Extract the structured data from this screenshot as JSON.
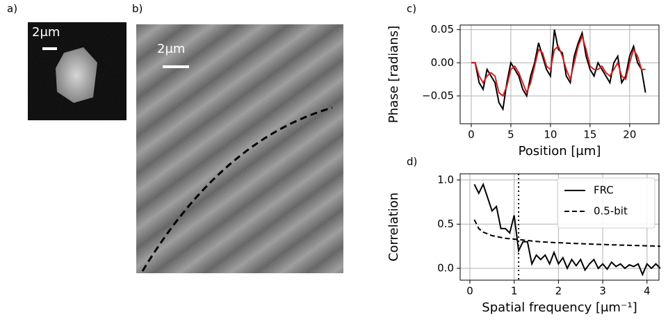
{
  "images": [
    {
      "label": "a)",
      "scale_bar": "2μm"
    },
    {
      "label": "b)",
      "scale_bar": "2μm"
    }
  ],
  "chart_data": [
    {
      "type": "line",
      "label": "c)",
      "ylabel": "Phase [radians]",
      "xlabel": "Position [μm]",
      "xlim": [
        -1.4,
        23.7
      ],
      "ylim": [
        -0.092,
        0.057
      ],
      "grid": true,
      "xticks": [
        0,
        5,
        10,
        15,
        20
      ],
      "yticks": [
        {
          "value": -0.05,
          "label": "−0.05"
        },
        {
          "value": 0,
          "label": "0.00"
        },
        0.05
      ],
      "x": [
        0,
        0.5,
        1,
        1.5,
        2,
        2.5,
        3,
        3.5,
        4,
        4.5,
        5,
        5.5,
        6,
        6.5,
        7,
        7.5,
        8,
        8.5,
        9,
        9.5,
        10,
        10.5,
        11,
        11.5,
        12,
        12.5,
        13,
        13.5,
        14,
        14.5,
        15,
        15.5,
        16,
        16.5,
        17,
        17.5,
        18,
        18.5,
        19,
        19.5,
        20,
        20.5,
        21,
        21.5,
        22
      ],
      "series": [
        {
          "color": "#000000",
          "style": "solid",
          "values": [
            0,
            0,
            -0.03,
            -0.04,
            -0.01,
            -0.02,
            -0.03,
            -0.06,
            -0.07,
            -0.03,
            0.0,
            -0.01,
            -0.02,
            -0.04,
            -0.05,
            -0.02,
            0.0,
            0.03,
            0.01,
            -0.01,
            -0.02,
            0.05,
            0.02,
            0.015,
            -0.02,
            -0.03,
            0.01,
            0.03,
            0.045,
            0.01,
            -0.01,
            -0.02,
            0.0,
            -0.01,
            -0.02,
            -0.03,
            0.0,
            0.01,
            -0.03,
            -0.02,
            0.01,
            0.025,
            0.0,
            -0.01,
            -0.045
          ]
        },
        {
          "color": "#d62020",
          "style": "solid",
          "values": [
            0,
            0,
            -0.02,
            -0.03,
            -0.02,
            -0.015,
            -0.02,
            -0.045,
            -0.05,
            -0.035,
            -0.01,
            -0.005,
            -0.015,
            -0.03,
            -0.045,
            -0.03,
            -0.005,
            0.02,
            0.015,
            -0.005,
            -0.01,
            0.02,
            0.025,
            0.01,
            -0.01,
            -0.025,
            0.0,
            0.025,
            0.04,
            0.02,
            -0.005,
            -0.01,
            -0.01,
            -0.005,
            -0.015,
            -0.02,
            -0.01,
            0.0,
            -0.02,
            -0.025,
            0.0,
            0.02,
            0.01,
            -0.01,
            -0.01
          ]
        }
      ]
    },
    {
      "type": "line",
      "label": "d)",
      "ylabel": "Correlation",
      "xlabel": "Spatial frequency [μm⁻¹]",
      "xlim": [
        -0.22,
        4.27
      ],
      "ylim": [
        -0.134,
        1.07
      ],
      "grid": true,
      "legend": "upper right",
      "xticks": [
        0,
        1,
        2,
        3,
        4
      ],
      "yticks": [
        {
          "value": 0,
          "label": "0.0"
        },
        0.5,
        {
          "value": 1,
          "label": "1.0"
        }
      ],
      "vline": 1.1,
      "x": [
        0.1,
        0.2,
        0.3,
        0.4,
        0.5,
        0.6,
        0.7,
        0.8,
        0.9,
        1.0,
        1.1,
        1.2,
        1.3,
        1.4,
        1.5,
        1.6,
        1.7,
        1.8,
        1.9,
        2.0,
        2.1,
        2.2,
        2.3,
        2.4,
        2.5,
        2.6,
        2.7,
        2.8,
        2.9,
        3.0,
        3.1,
        3.2,
        3.3,
        3.4,
        3.5,
        3.6,
        3.7,
        3.8,
        3.9,
        4.0,
        4.1,
        4.2,
        4.3
      ],
      "series": [
        {
          "name": "FRC",
          "color": "#000000",
          "style": "solid",
          "values": [
            0.95,
            0.85,
            0.95,
            0.8,
            0.65,
            0.7,
            0.45,
            0.45,
            0.4,
            0.6,
            0.2,
            0.3,
            0.3,
            0.05,
            0.15,
            0.1,
            0.15,
            0.05,
            0.18,
            0.05,
            0.12,
            0.0,
            0.1,
            0.03,
            0.1,
            -0.02,
            0.05,
            0.1,
            0.0,
            0.05,
            -0.01,
            0.07,
            0.02,
            0.05,
            0.0,
            0.04,
            0.02,
            0.05,
            -0.07,
            0.05,
            0.0,
            0.05,
            0.0
          ]
        },
        {
          "name": "0.5-bit",
          "color": "#000000",
          "style": "dashed",
          "values": [
            0.55,
            0.45,
            0.41,
            0.39,
            0.37,
            0.36,
            0.35,
            0.34,
            0.335,
            0.33,
            0.325,
            0.32,
            0.315,
            0.31,
            0.305,
            0.3,
            0.298,
            0.295,
            0.292,
            0.29,
            0.288,
            0.285,
            0.283,
            0.281,
            0.279,
            0.277,
            0.275,
            0.273,
            0.271,
            0.27,
            0.268,
            0.266,
            0.265,
            0.263,
            0.262,
            0.26,
            0.259,
            0.257,
            0.256,
            0.255,
            0.253,
            0.252,
            0.25
          ]
        }
      ]
    }
  ]
}
